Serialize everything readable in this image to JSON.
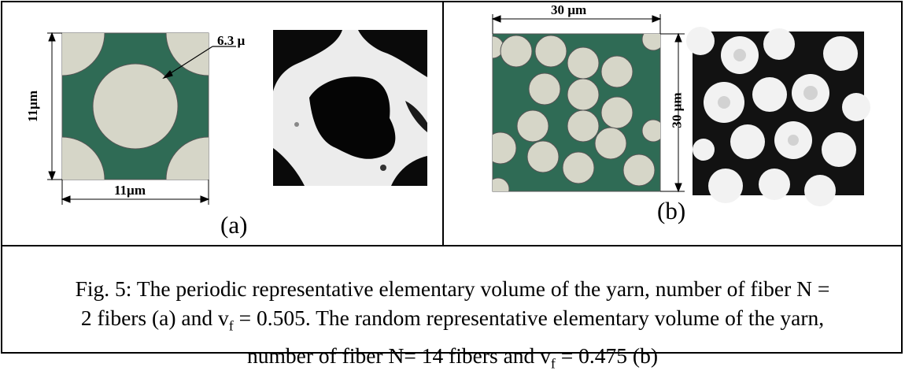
{
  "figure": {
    "panel_a": {
      "label": "(a)",
      "dim_width": "11µm",
      "dim_height": "11µm",
      "dim_diameter": "6.3 µ"
    },
    "panel_b": {
      "label": "(b)",
      "dim_width": "30 µm",
      "dim_height": "30 µm"
    },
    "caption": {
      "line1": "Fig. 5: The periodic representative elementary volume of the yarn, number of fiber N =",
      "line2": "2 fibers (a) and v",
      "line2_sub": "f",
      "line2_end": " = 0.505. The random representative elementary volume of the yarn,",
      "line3": "number of fiber N= 14 fibers and v",
      "line3_sub": "f",
      "line3_end": " = 0.475 (b)"
    },
    "colors": {
      "matrix": "#2f6b55",
      "fiber": "#d6d6c8",
      "border": "#000000"
    }
  }
}
